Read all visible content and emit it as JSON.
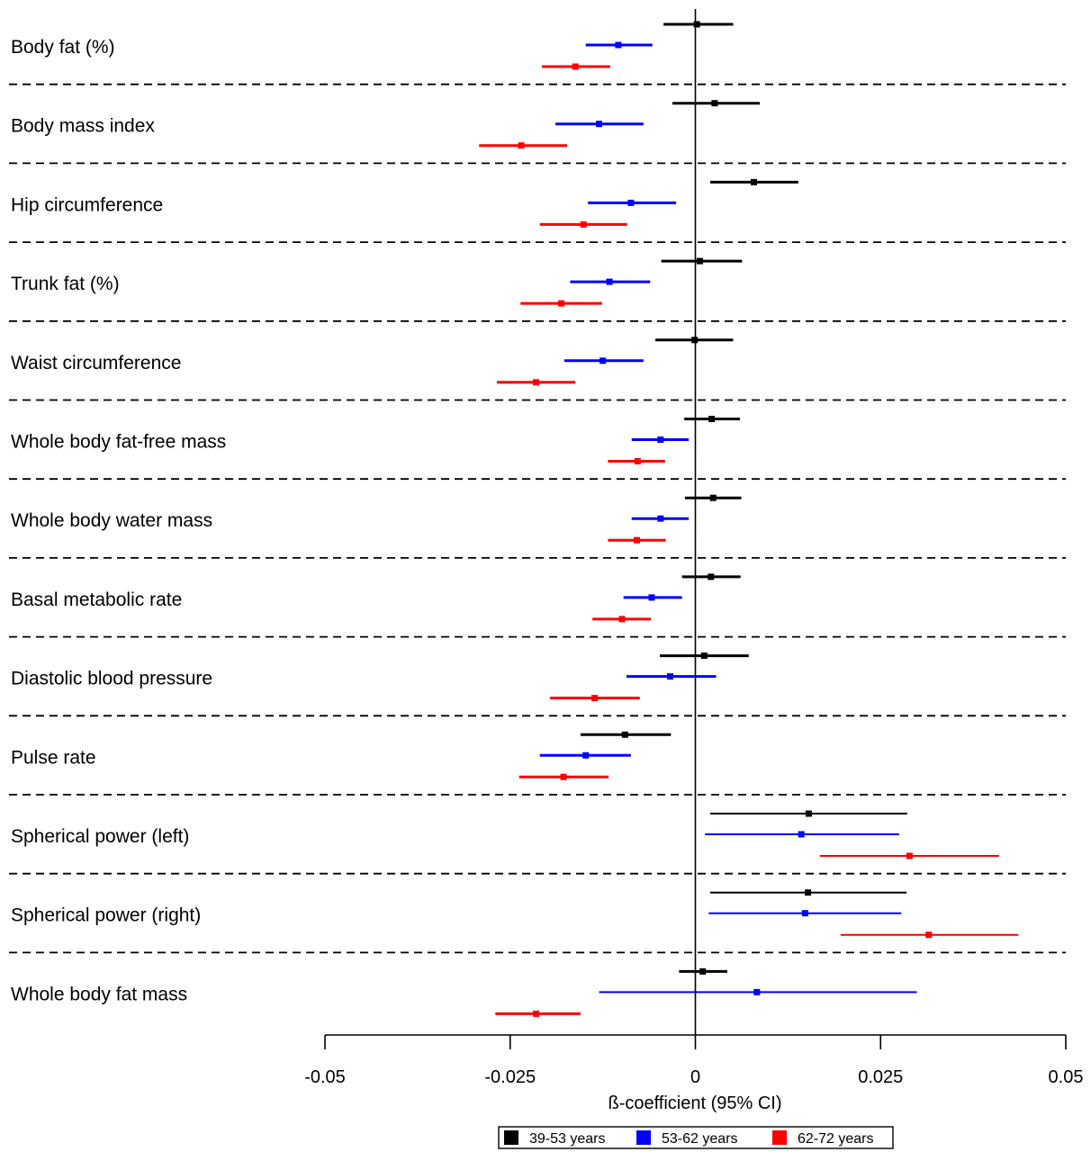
{
  "chart_data": {
    "type": "forest",
    "xlabel": "ß-coefficient (95% CI)",
    "xlim": [
      -0.05,
      0.05
    ],
    "xticks": [
      {
        "value": -0.05,
        "label": "-0.05"
      },
      {
        "value": -0.025,
        "label": "-0.025"
      },
      {
        "value": 0,
        "label": "0"
      },
      {
        "value": 0.025,
        "label": "0.025"
      },
      {
        "value": 0.05,
        "label": "0.05"
      }
    ],
    "reference_line": 0,
    "legend_position": "bottom-center",
    "series": [
      {
        "name": "39-53 years",
        "color": "#000000"
      },
      {
        "name": "53-62 years",
        "color": "#0000ff"
      },
      {
        "name": "62-72 years",
        "color": "#ff0000"
      }
    ],
    "rows": [
      {
        "label": "Body fat (%)",
        "estimates": [
          {
            "est": 0.0002,
            "lo": -0.0043,
            "hi": 0.0051
          },
          {
            "est": -0.0104,
            "lo": -0.0148,
            "hi": -0.0058
          },
          {
            "est": -0.0162,
            "lo": -0.0207,
            "hi": -0.0115
          }
        ]
      },
      {
        "label": "Body mass index",
        "estimates": [
          {
            "est": 0.0026,
            "lo": -0.0031,
            "hi": 0.0087
          },
          {
            "est": -0.013,
            "lo": -0.0189,
            "hi": -0.007
          },
          {
            "est": -0.0235,
            "lo": -0.0292,
            "hi": -0.0173
          }
        ]
      },
      {
        "label": "Hip circumference",
        "estimates": [
          {
            "est": 0.0079,
            "lo": 0.002,
            "hi": 0.0139
          },
          {
            "est": -0.0087,
            "lo": -0.0145,
            "hi": -0.0026
          },
          {
            "est": -0.0151,
            "lo": -0.021,
            "hi": -0.0092
          }
        ]
      },
      {
        "label": "Trunk fat (%)",
        "estimates": [
          {
            "est": 0.0006,
            "lo": -0.0046,
            "hi": 0.0063
          },
          {
            "est": -0.0116,
            "lo": -0.0169,
            "hi": -0.0061
          },
          {
            "est": -0.0181,
            "lo": -0.0236,
            "hi": -0.0126
          }
        ]
      },
      {
        "label": "Waist circumference",
        "estimates": [
          {
            "est": -0.0001,
            "lo": -0.0054,
            "hi": 0.0051
          },
          {
            "est": -0.0125,
            "lo": -0.0177,
            "hi": -0.007
          },
          {
            "est": -0.0215,
            "lo": -0.0268,
            "hi": -0.0162
          }
        ]
      },
      {
        "label": "Whole body fat-free mass",
        "estimates": [
          {
            "est": 0.0022,
            "lo": -0.0015,
            "hi": 0.006
          },
          {
            "est": -0.0047,
            "lo": -0.0086,
            "hi": -0.0009
          },
          {
            "est": -0.0078,
            "lo": -0.0118,
            "hi": -0.0041
          }
        ]
      },
      {
        "label": "Whole body water mass",
        "estimates": [
          {
            "est": 0.0024,
            "lo": -0.0014,
            "hi": 0.0062
          },
          {
            "est": -0.0047,
            "lo": -0.0086,
            "hi": -0.0009
          },
          {
            "est": -0.0079,
            "lo": -0.0118,
            "hi": -0.004
          }
        ]
      },
      {
        "label": "Basal metabolic rate",
        "estimates": [
          {
            "est": 0.0021,
            "lo": -0.0018,
            "hi": 0.0061
          },
          {
            "est": -0.0059,
            "lo": -0.0097,
            "hi": -0.0018
          },
          {
            "est": -0.0099,
            "lo": -0.0139,
            "hi": -0.006
          }
        ]
      },
      {
        "label": "Diastolic blood pressure",
        "estimates": [
          {
            "est": 0.0012,
            "lo": -0.0048,
            "hi": 0.0072
          },
          {
            "est": -0.0034,
            "lo": -0.0093,
            "hi": 0.0028
          },
          {
            "est": -0.0136,
            "lo": -0.0196,
            "hi": -0.0075
          }
        ]
      },
      {
        "label": "Pulse rate",
        "estimates": [
          {
            "est": -0.0095,
            "lo": -0.0155,
            "hi": -0.0033
          },
          {
            "est": -0.0148,
            "lo": -0.021,
            "hi": -0.0087
          },
          {
            "est": -0.0178,
            "lo": -0.0238,
            "hi": -0.0117
          }
        ]
      },
      {
        "label": "Spherical power (left)",
        "estimates": [
          {
            "est": 0.0153,
            "lo": 0.002,
            "hi": 0.0286
          },
          {
            "est": 0.0143,
            "lo": 0.0013,
            "hi": 0.0275
          },
          {
            "est": 0.0289,
            "lo": 0.0168,
            "hi": 0.041
          }
        ]
      },
      {
        "label": "Spherical power (right)",
        "estimates": [
          {
            "est": 0.0152,
            "lo": 0.002,
            "hi": 0.0285
          },
          {
            "est": 0.0148,
            "lo": 0.0018,
            "hi": 0.0278
          },
          {
            "est": 0.0315,
            "lo": 0.0196,
            "hi": 0.0436
          }
        ]
      },
      {
        "label": "Whole body fat mass",
        "estimates": [
          {
            "est": 0.001,
            "lo": -0.0022,
            "hi": 0.0043
          },
          {
            "est": 0.0083,
            "lo": -0.013,
            "hi": 0.0299
          },
          {
            "est": -0.0215,
            "lo": -0.027,
            "hi": -0.0155
          }
        ]
      }
    ]
  }
}
